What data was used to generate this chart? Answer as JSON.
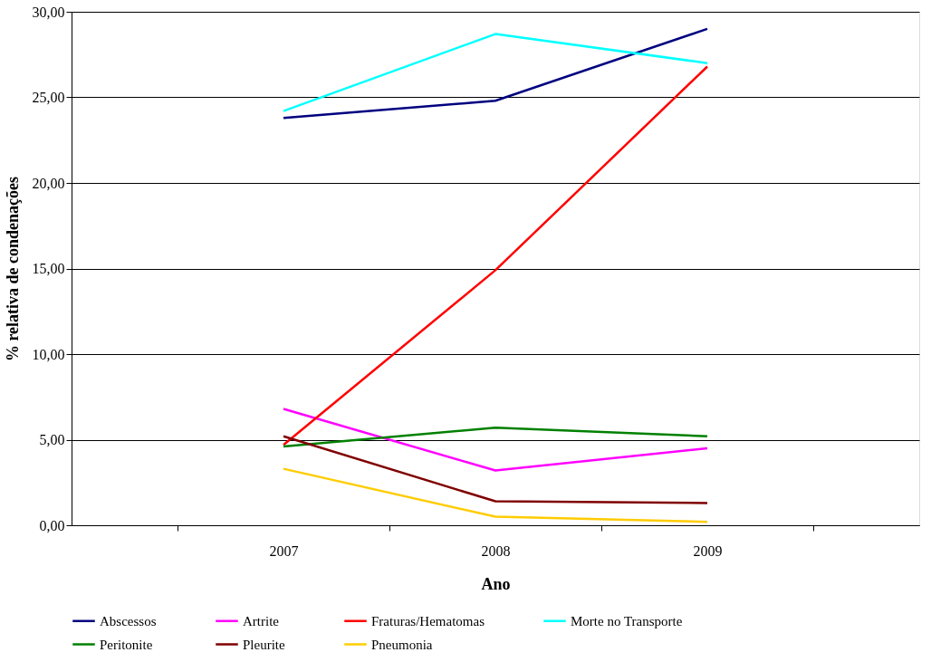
{
  "chart_data": {
    "type": "line",
    "xlabel": "Ano",
    "ylabel": "% relativa de condenações",
    "categories": [
      "2007",
      "2008",
      "2009"
    ],
    "series": [
      {
        "name": "Abscessos",
        "color": "#000080",
        "values": [
          23.8,
          24.8,
          29.0
        ]
      },
      {
        "name": "Artrite",
        "color": "#ff00ff",
        "values": [
          6.8,
          3.2,
          4.5
        ]
      },
      {
        "name": "Fraturas/Hematomas",
        "color": "#ff0000",
        "values": [
          4.7,
          14.9,
          26.8
        ]
      },
      {
        "name": "Morte no Transporte",
        "color": "#00ffff",
        "values": [
          24.2,
          28.7,
          27.0
        ]
      },
      {
        "name": "Peritonite",
        "color": "#008000",
        "values": [
          4.6,
          5.7,
          5.2
        ]
      },
      {
        "name": "Pleurite",
        "color": "#800000",
        "values": [
          5.2,
          1.4,
          1.3
        ]
      },
      {
        "name": "Pneumonia",
        "color": "#ffcc00",
        "values": [
          3.3,
          0.5,
          0.2
        ]
      }
    ],
    "ylim": [
      0,
      30
    ],
    "yticks": [
      {
        "value": 0,
        "label": "0,00"
      },
      {
        "value": 5,
        "label": "5,00"
      },
      {
        "value": 10,
        "label": "10,00"
      },
      {
        "value": 15,
        "label": "15,00"
      },
      {
        "value": 20,
        "label": "20,00"
      },
      {
        "value": 25,
        "label": "25,00"
      },
      {
        "value": 30,
        "label": "30,00"
      }
    ],
    "grid": "y",
    "legend": "bottom",
    "marker": "none",
    "line_style": "solid"
  }
}
